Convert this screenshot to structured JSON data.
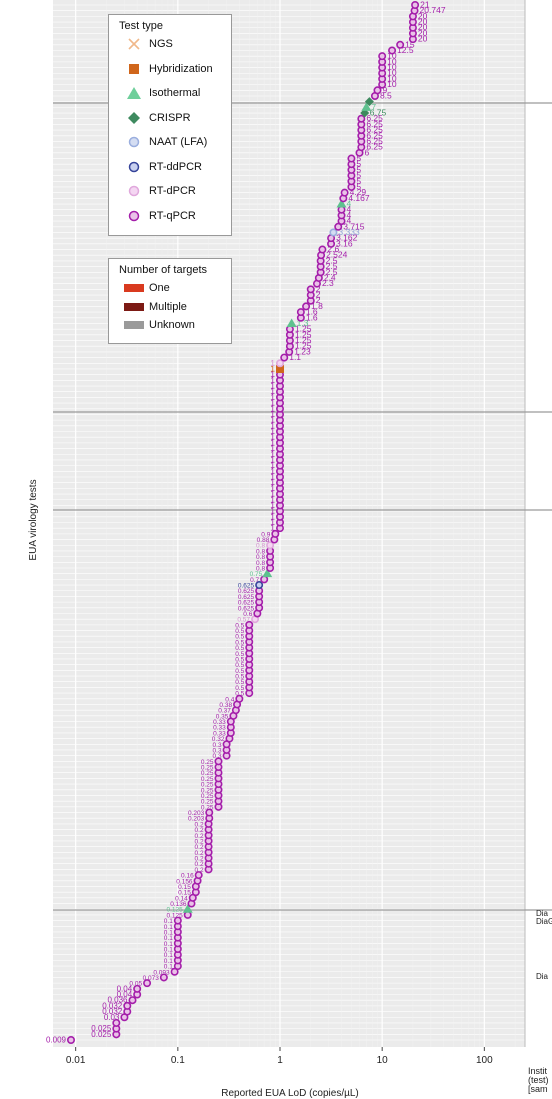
{
  "chart_data": {
    "type": "scatter",
    "xlabel": "Reported EUA LoD (copies/µL)",
    "ylabel": "EUA virology tests",
    "x_scale": "log",
    "xlim": [
      0.006,
      250
    ],
    "x_ticks": [
      "0.01",
      "0.1",
      "1",
      "10",
      "100"
    ],
    "x_tick_values": [
      0.01,
      0.1,
      1,
      10,
      100
    ],
    "grid": true,
    "colors": {
      "panel_bg": "#ebebeb",
      "grid": "#ffffff",
      "separator": "#9a9a9a",
      "purple": "#a41eaa",
      "pink_fill": "#eac2e8",
      "green": "#5fc18f",
      "dark_green": "#3e8a5f",
      "orange": "#d0661b",
      "light_blue": "#aec2e4",
      "navy": "#36449a"
    },
    "legend_test_type": {
      "title": "Test type",
      "items": [
        {
          "label": "NGS",
          "shape": "cross",
          "color": "#f0b88a"
        },
        {
          "label": "Hybridization",
          "shape": "square",
          "color": "#d0661b"
        },
        {
          "label": "Isothermal",
          "shape": "triangle",
          "color": "#6fcf9b"
        },
        {
          "label": "CRISPR",
          "shape": "diamond",
          "color": "#3e8a5f"
        },
        {
          "label": "NAAT (LFA)",
          "shape": "circle",
          "fill": "#d4ddf2",
          "stroke": "#9aaede"
        },
        {
          "label": "RT-ddPCR",
          "shape": "circle",
          "fill": "#c8d0ef",
          "stroke": "#36449a"
        },
        {
          "label": "RT-dPCR",
          "shape": "circle",
          "fill": "#f4d6f2",
          "stroke": "#e0a8dc"
        },
        {
          "label": "RT-qPCR",
          "shape": "circle",
          "fill": "#eac2e8",
          "stroke": "#a41eaa"
        }
      ]
    },
    "legend_targets": {
      "title": "Number of targets",
      "items": [
        {
          "label": "One",
          "color": "#d93a1f"
        },
        {
          "label": "Multiple",
          "color": "#7c1a14"
        },
        {
          "label": "Unknown",
          "color": "#9a9a9a"
        }
      ]
    },
    "separators_y": [
      103,
      412,
      510,
      910
    ],
    "series": [
      {
        "name": "RT-qPCR",
        "values": [
          [
            0.009,
            "0.009"
          ],
          [
            0.025,
            "0.025"
          ],
          [
            0.025,
            "0.025"
          ],
          [
            0.025,
            ""
          ],
          [
            0.03,
            "0.03"
          ],
          [
            0.032,
            "0.032"
          ],
          [
            0.032,
            "0.032"
          ],
          [
            0.036,
            "0.036"
          ],
          [
            0.04,
            "0.04"
          ],
          [
            0.04,
            "0.04"
          ],
          [
            0.05,
            "0.05"
          ],
          [
            0.073,
            "0.073"
          ],
          [
            0.093,
            "0.093"
          ],
          [
            0.1,
            "0.1"
          ],
          [
            0.1,
            "0.1"
          ],
          [
            0.1,
            "0.1"
          ],
          [
            0.1,
            "0.1"
          ],
          [
            0.1,
            "0.1"
          ],
          [
            0.1,
            "0.1"
          ],
          [
            0.1,
            "0.1"
          ],
          [
            0.1,
            "0.1"
          ],
          [
            0.1,
            "0.1"
          ],
          [
            0.125,
            "0.125"
          ],
          [
            0.136,
            "0.136"
          ],
          [
            0.14,
            "0.14"
          ],
          [
            0.15,
            "0.15"
          ],
          [
            0.15,
            "0.15"
          ],
          [
            0.156,
            "0.156"
          ],
          [
            0.16,
            "0.16"
          ],
          [
            0.2,
            "0.2"
          ],
          [
            0.2,
            "0.2"
          ],
          [
            0.2,
            "0.2"
          ],
          [
            0.2,
            "0.2"
          ],
          [
            0.2,
            "0.2"
          ],
          [
            0.2,
            "0.2"
          ],
          [
            0.2,
            "0.2"
          ],
          [
            0.2,
            "0.2"
          ],
          [
            0.2,
            "0.2"
          ],
          [
            0.203,
            "0.203"
          ],
          [
            0.203,
            "0.203"
          ],
          [
            0.25,
            "0.25"
          ],
          [
            0.25,
            "0.25"
          ],
          [
            0.25,
            "0.25"
          ],
          [
            0.25,
            "0.25"
          ],
          [
            0.25,
            "0.25"
          ],
          [
            0.25,
            "0.25"
          ],
          [
            0.25,
            "0.25"
          ],
          [
            0.25,
            "0.25"
          ],
          [
            0.25,
            "0.25"
          ],
          [
            0.3,
            "0.3"
          ],
          [
            0.3,
            "0.3"
          ],
          [
            0.3,
            "0.3"
          ],
          [
            0.32,
            "0.32"
          ],
          [
            0.33,
            "0.33"
          ],
          [
            0.33,
            "0.33"
          ],
          [
            0.33,
            "0.33"
          ],
          [
            0.35,
            "0.35"
          ],
          [
            0.37,
            "0.37"
          ],
          [
            0.38,
            "0.38"
          ],
          [
            0.4,
            "0.4"
          ],
          [
            0.5,
            "0.5"
          ],
          [
            0.5,
            "0.5"
          ],
          [
            0.5,
            "0.5"
          ],
          [
            0.5,
            "0.5"
          ],
          [
            0.5,
            "0.5"
          ],
          [
            0.5,
            "0.5"
          ],
          [
            0.5,
            "0.5"
          ],
          [
            0.5,
            "0.5"
          ],
          [
            0.5,
            "0.5"
          ],
          [
            0.5,
            "0.5"
          ],
          [
            0.5,
            "0.5"
          ],
          [
            0.5,
            "0.5"
          ],
          [
            0.5,
            "0.5"
          ],
          [
            0.6,
            "0.6"
          ],
          [
            0.625,
            "0.625"
          ],
          [
            0.625,
            "0.625"
          ],
          [
            0.625,
            "0.625"
          ],
          [
            0.625,
            "0.625"
          ],
          [
            0.7,
            "0.7"
          ],
          [
            0.8,
            "0.8"
          ],
          [
            0.8,
            "0.8"
          ],
          [
            0.8,
            "0.8"
          ],
          [
            0.8,
            "0.8"
          ],
          [
            0.88,
            "0.88"
          ],
          [
            0.9,
            "0.9"
          ],
          [
            1,
            "1"
          ],
          [
            1,
            "1"
          ],
          [
            1,
            "1"
          ],
          [
            1,
            "1"
          ],
          [
            1,
            "1"
          ],
          [
            1,
            "1"
          ],
          [
            1,
            "1"
          ],
          [
            1,
            "1"
          ],
          [
            1,
            "1"
          ],
          [
            1,
            "1"
          ],
          [
            1,
            "1"
          ],
          [
            1,
            "1"
          ],
          [
            1,
            "1"
          ],
          [
            1,
            "1"
          ],
          [
            1,
            "1"
          ],
          [
            1,
            "1"
          ],
          [
            1,
            "1"
          ],
          [
            1,
            "1"
          ],
          [
            1,
            "1"
          ],
          [
            1,
            "1"
          ],
          [
            1,
            "1"
          ],
          [
            1,
            "1"
          ],
          [
            1,
            "1"
          ],
          [
            1,
            "1"
          ],
          [
            1,
            "1"
          ],
          [
            1,
            "1"
          ],
          [
            1,
            "1"
          ],
          [
            1,
            "1"
          ],
          [
            1.1,
            "1.1"
          ],
          [
            1.23,
            "1.23"
          ],
          [
            1.25,
            "1.25"
          ],
          [
            1.25,
            "1.25"
          ],
          [
            1.25,
            "1.25"
          ],
          [
            1.25,
            "1.25"
          ],
          [
            1.6,
            "1.6"
          ],
          [
            1.6,
            "1.6"
          ],
          [
            1.8,
            "1.8"
          ],
          [
            2,
            "2"
          ],
          [
            2,
            "2"
          ],
          [
            2,
            "2"
          ],
          [
            2.3,
            "2.3"
          ],
          [
            2.4,
            "2.4"
          ],
          [
            2.5,
            "2.5"
          ],
          [
            2.5,
            "2.5"
          ],
          [
            2.5,
            "2.5"
          ],
          [
            2.524,
            "2.524"
          ],
          [
            2.6,
            "2.6"
          ],
          [
            3.16,
            "3.16"
          ],
          [
            3.162,
            "3.162"
          ],
          [
            3.715,
            "3.715"
          ],
          [
            4,
            "4"
          ],
          [
            4,
            "4"
          ],
          [
            4,
            "4"
          ],
          [
            4.167,
            "4.167"
          ],
          [
            4.29,
            "4.29"
          ],
          [
            5,
            "5"
          ],
          [
            5,
            "5"
          ],
          [
            5,
            "5"
          ],
          [
            5,
            "5"
          ],
          [
            5,
            "5"
          ],
          [
            5,
            "5"
          ],
          [
            6,
            "6"
          ],
          [
            6.25,
            "6.25"
          ],
          [
            6.25,
            "6.25"
          ],
          [
            6.25,
            "6.25"
          ],
          [
            6.25,
            "6.25"
          ],
          [
            6.25,
            "6.25"
          ],
          [
            6.25,
            "6.25"
          ],
          [
            8.5,
            "8.5"
          ],
          [
            9,
            "9"
          ],
          [
            10,
            "10"
          ],
          [
            10,
            "10"
          ],
          [
            10,
            "10"
          ],
          [
            10,
            "10"
          ],
          [
            10,
            "10"
          ],
          [
            10,
            "10"
          ],
          [
            12.5,
            "12.5"
          ],
          [
            15,
            "15"
          ],
          [
            20,
            "20"
          ],
          [
            20,
            "20"
          ],
          [
            20,
            "20"
          ],
          [
            20,
            "20"
          ],
          [
            20,
            "20"
          ],
          [
            20.747,
            "20.747"
          ],
          [
            21,
            "21"
          ]
        ]
      },
      {
        "name": "Isothermal",
        "values": [
          [
            0.125,
            "0.125"
          ],
          [
            0.75,
            "0.75"
          ],
          [
            1.3,
            "1.3"
          ],
          [
            4,
            "4"
          ],
          [
            7,
            "7"
          ]
        ]
      },
      {
        "name": "CRISPR",
        "values": [
          [
            6.75,
            "6.75"
          ],
          [
            7.5,
            ""
          ]
        ]
      },
      {
        "name": "Hybridization",
        "values": [
          [
            1,
            "1"
          ]
        ]
      },
      {
        "name": "RT-ddPCR",
        "values": [
          [
            0.625,
            "0.625"
          ]
        ]
      },
      {
        "name": "RT-dPCR",
        "values": [
          [
            0.57,
            "0.57"
          ],
          [
            0.8,
            "0.8"
          ],
          [
            1,
            "1"
          ]
        ]
      },
      {
        "name": "NAAT (LFA)",
        "values": [
          [
            3.333,
            "3.333"
          ]
        ]
      }
    ]
  },
  "clipped_labels": {
    "right_top": "Dia\nDiaG",
    "right_mid": "Dia",
    "bottom_right": "Instit\n(test)\n[sam"
  }
}
